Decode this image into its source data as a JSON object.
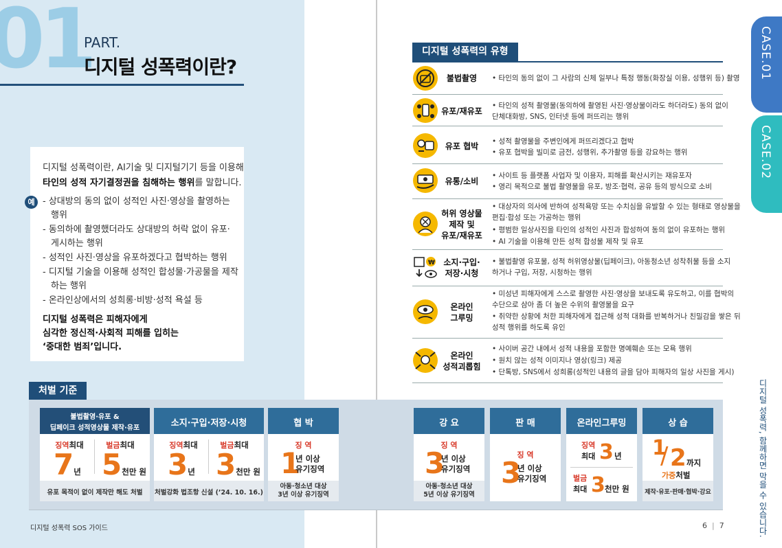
{
  "left": {
    "big_number": "01",
    "part": "PART.",
    "title_strong": "디지털 성폭력",
    "title_rest": "이란?",
    "def": {
      "l1": "디지털 성폭력이란, AI기술 및 디지털기기 등을 이용해",
      "l2_b": "타인의 성적 자기결정권을 침해하는 행위",
      "l2_r": "를 말합니다.",
      "example_badge": "예",
      "e1a": "- 상대방의 동의 없이 성적인 사진·영상을 촬영하는",
      "e1b": "행위",
      "e2a": "- 동의하에 촬영했더라도 상대방의 허락 없이 유포·",
      "e2b": "게시하는 행위",
      "e3": "- 성적인 사진·영상을 유포하겠다고 협박하는 행위",
      "e4a": "- 디지털 기술을 이용해 성적인 합성물·가공물을 제작",
      "e4b": "하는 행위",
      "e5": "- 온라인상에서의 성희롱·비방·성적 욕설 등",
      "c1": "디지털 성폭력은 피해자에게",
      "c2": "심각한 정신적·사회적 피해를 입히는",
      "c3": "‘중대한 범죄’입니다."
    },
    "footer": "디지털 성폭력 SOS 가이드",
    "page_no": "6"
  },
  "types": {
    "heading": "디지털 성폭력의 유형",
    "rows": [
      {
        "icon": "no-camera-icon",
        "label": [
          "불법촬영"
        ],
        "lines": [
          "• 타인의 동의 없이 그 사람의 신체 일부나 특정 행동(화장실 이용, 성행위 등) 촬영"
        ]
      },
      {
        "icon": "share-phone-icon",
        "label": [
          "유포/재유포"
        ],
        "lines": [
          "• 타인의 성적 촬영물(동의하에 촬영된 사진·영상물이라도 하더라도) 동의 없이",
          "  단체대화방, SNS, 인터넷 등에 퍼뜨리는 행위"
        ]
      },
      {
        "icon": "threat-icon",
        "label": [
          "유포 협박"
        ],
        "lines": [
          "• 성적 촬영물을 주변인에게 퍼뜨리겠다고 협박",
          "• 유포 협박을 빌미로 금전, 성행위, 추가촬영 등을 강요하는 행위"
        ]
      },
      {
        "icon": "money-hand-icon",
        "label": [
          "유통/소비"
        ],
        "lines": [
          "• 사이트 등 플랫폼 사업자 및 이용자, 피해를 확산시키는 재유포자",
          "• 영리 목적으로 불법 촬영물을 유포, 방조·협력, 공유 등의 방식으로 소비"
        ]
      },
      {
        "icon": "fake-face-icon",
        "label": [
          "허위 영상물",
          "제작 및",
          "유포/재유포"
        ],
        "lines": [
          "• 대상자의 의사에 반하여 성적욕망 또는 수치심을 유발할 수 있는 형태로 영상물을",
          "  편집·합성 또는 가공하는 행위",
          "• 평범한 일상사진을 타인의 성적인 사진과 합성하여 동의 없이 유포하는 행위",
          "• AI 기술을 이용해 만든 성적 합성물 제작 및 유포"
        ]
      },
      {
        "icon": "download-view-icon",
        "label": [
          "소지·구입·",
          "저장·시청"
        ],
        "lines": [
          "• 불법촬영 유포물, 성적 허위영상물(딥페이크), 아동청소년 성착취물 등을 소지",
          "  하거나 구입, 저장, 시청하는 행위"
        ]
      },
      {
        "icon": "grooming-icon",
        "label": [
          "온라인",
          "그루밍"
        ],
        "lines": [
          "• 미성년 피해자에게 스스로 촬영한 사진·영상을 보내도록 유도하고, 이를 협박의",
          "  수단으로 삼아 좀 더 높은 수위의 촬영물을 요구",
          "• 취약한 상황에 처한 피해자에게 접근해 성적 대화를 반복하거나 친밀감을 쌓은 뒤",
          "  성적 행위를 하도록 유인"
        ]
      },
      {
        "icon": "harassment-icon",
        "label": [
          "온라인",
          "성적괴롭힘"
        ],
        "lines": [
          "• 사이버 공간 내에서 성적 내용을 포함한 명예훼손 또는 모욕 행위",
          "• 원치 않는 성적 이미지나 영상(링크) 제공",
          "• 단톡방, SNS에서 성희롱(성적인 내용의 글을 담아 피해자의 일상 사진을 게시)"
        ]
      }
    ]
  },
  "penalty": {
    "heading": "처벌 기준",
    "c1": {
      "title1": "불법촬영·유포 &",
      "title2": "딥페이크 성적영상물 제작·유포",
      "prison_a": "징역",
      "prison_b": "최대",
      "fine_a": "벌금",
      "fine_b": "최대",
      "p_num": "7",
      "p_unit": "년",
      "f_num": "5",
      "f_unit": "천만 원",
      "foot": "유포 목적이 없이 제작만 해도 처벌"
    },
    "c2": {
      "title": "소지·구입·저장·시청",
      "prison_a": "징역",
      "prison_b": "최대",
      "fine_a": "벌금",
      "fine_b": "최대",
      "p_num": "3",
      "p_unit": "년",
      "f_num": "3",
      "f_unit": "천만 원",
      "foot": "처벌강화 법조항 신설 (’24. 10. 16.)"
    },
    "c3": {
      "title": "협 박",
      "label": "징 역",
      "num": "1",
      "t1": "년 이상",
      "t2": "유기징역",
      "foot1": "아동·청소년 대상",
      "foot2": "3년 이상 유기징역"
    },
    "c4": {
      "title": "강 요",
      "label": "징 역",
      "num": "3",
      "t1": "년 이상",
      "t2": "유기징역",
      "foot1": "아동·청소년 대상",
      "foot2": "5년 이상 유기징역"
    },
    "c5": {
      "title": "판 매",
      "label": "징 역",
      "num": "3",
      "t1": "년 이상",
      "t2": "유기징역"
    },
    "c6": {
      "title": "온라인그루밍",
      "p1": "징역",
      "p2": "최대",
      "p_num": "3",
      "p_unit": "년",
      "f1": "벌금",
      "f2": "최대",
      "f_num": "3",
      "f_unit": "천만 원"
    },
    "c7": {
      "title": "상 습",
      "frac_num": "1",
      "frac_slash": "/",
      "frac_den": "2",
      "kkaji": "까지",
      "g1": "가중",
      "g2": "처벌",
      "foot": "제작·유포·판매·협박·강요"
    }
  },
  "right_footer": {
    "page_no": "7",
    "sep": "|"
  },
  "tabs": {
    "case1": "CASE.01",
    "case2": "CASE.02",
    "vertical_text": "디지털 성폭력, 함께하면 막을 수 있습니다."
  },
  "colors": {
    "navy": "#1f4e79",
    "accent_yellow": "#f5b800",
    "orange": "#e8751a",
    "red": "#d83a2a",
    "light_blue": "#d9e9f3"
  }
}
